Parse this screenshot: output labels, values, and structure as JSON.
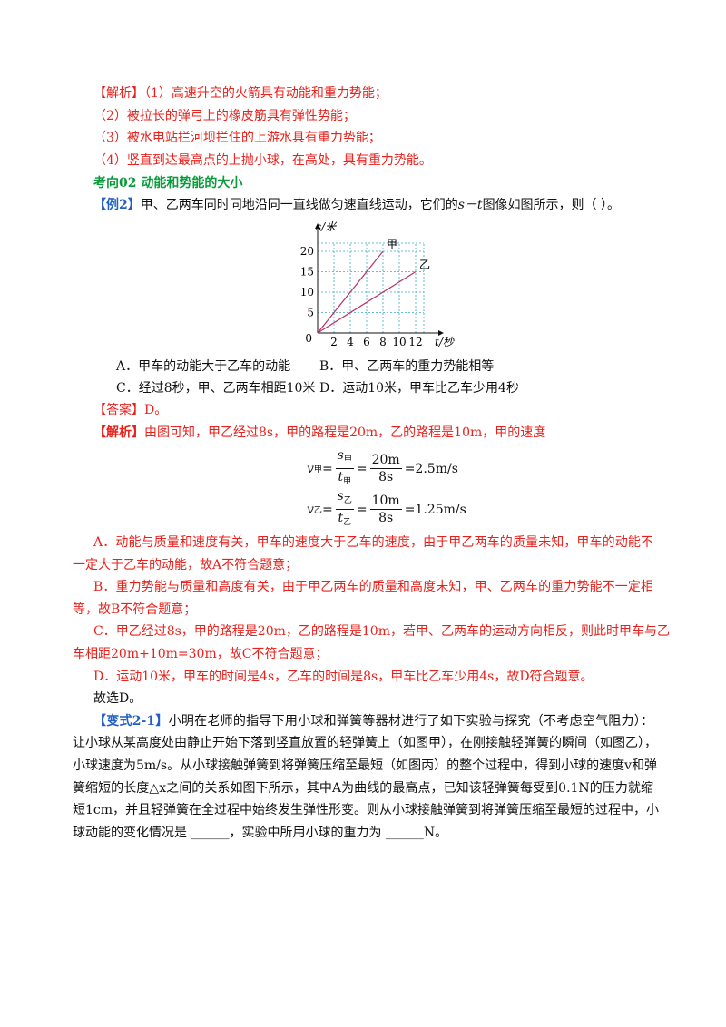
{
  "analysis1": {
    "label": "【解析】",
    "lines": [
      "（1）高速升空的火箭具有动能和重力势能；",
      "（2）被拉长的弹弓上的橡皮筋具有弹性势能；",
      "（3）被水电站拦河坝拦住的上游水具有重力势能；",
      "（4）竖直到达最高点的上抛小球，在高处，具有重力势能。"
    ]
  },
  "section": "考向02   动能和势能的大小",
  "example": {
    "label": "【例2】",
    "text_before": "甲、乙两车同时同地沿同一直线做匀速直线运动，它们的",
    "var": "s－t",
    "text_after": "图像如图所示，则（      ）。"
  },
  "figure": {
    "type": "line",
    "y_label": "s/米",
    "x_label": "t/秒",
    "origin": 0,
    "xlim": [
      0,
      13
    ],
    "ylim": [
      0,
      22
    ],
    "xticks": [
      2,
      4,
      6,
      8,
      10,
      12
    ],
    "yticks": [
      5,
      10,
      15,
      20
    ],
    "grid": true,
    "grid_color": "#3aa7c8",
    "series": [
      {
        "name": "甲",
        "color": "#b8336a",
        "x": [
          0,
          8
        ],
        "values": [
          0,
          20
        ]
      },
      {
        "name": "乙",
        "color": "#b8336a",
        "x": [
          0,
          12
        ],
        "values": [
          0,
          15
        ]
      }
    ]
  },
  "options": [
    "A．甲车的动能大于乙车的动能",
    "B．甲、乙两车的重力势能相等",
    "C．经过8秒，甲、乙两车相距10米",
    "D．运动10米，甲车比乙车少用4秒"
  ],
  "answer": {
    "label": "【答案】",
    "text": "D。"
  },
  "analysis2": {
    "label": "【解析】",
    "text": "由图可知，甲乙经过8s，甲的路程是20m，乙的路程是10m，甲的速度",
    "formulas": [
      {
        "lhs": "v",
        "lhs_sub": "甲",
        "eq": "=",
        "num": "s",
        "num_sub": "甲",
        "den": "t",
        "den_sub": "甲",
        "num2": "20m",
        "den2": "8s",
        "result": "=2.5m/s"
      },
      {
        "lhs": "v",
        "lhs_sub": "乙",
        "eq": "=",
        "num": "s",
        "num_sub": "乙",
        "den": "t",
        "den_sub": "乙",
        "num2": "10m",
        "den2": "8s",
        "result": "=1.25m/s"
      }
    ],
    "paragraphs": [
      [
        "A．动能与质量和速度有关，甲车的速度大于乙车的速度，由于甲乙两车的质量未知，甲车的动能不",
        "一定大于乙车的动能，故A不符合题意；"
      ],
      [
        "B．重力势能与质量和高度有关，由于甲乙两车的质量和高度未知，甲、乙两车的重力势能不一定相",
        "等，故B不符合题意；"
      ],
      [
        "C．甲乙经过8s，甲的路程是20m，乙的路程是10m，若甲、乙两车的运动方向相反，则此时甲车与乙",
        "车相距20m+10m=30m，故C不符合题意；"
      ],
      [
        "D．运动10米，甲车的时间是4s，乙车的时间是8s，甲车比乙车少用4s，故D符合题意。"
      ]
    ],
    "conclusion": "故选D。"
  },
  "variant": {
    "label": "【变式2-1】",
    "lines": [
      "小明在老师的指导下用小球和弹簧等器材进行了如下实验与探究（不考虑空气阻力）：",
      "让小球从某高度处由静止开始下落到竖直放置的轻弹簧上（如图甲），在刚接触轻弹簧的瞬间（如图乙），",
      "小球速度为5m/s。从小球接触弹簧到将弹簧压缩至最短（如图丙）的整个过程中，得到小球的速度v和弹",
      "簧缩短的长度△x之间的关系如图下所示，其中A为曲线的最高点，已知该轻弹簧每受到0.1N的压力就缩",
      "短1cm，并且轻弹簧在全过程中始终发生弹性形变。则从小球接触弹簧到将弹簧压缩至最短的过程中，小",
      "球动能的变化情况是 ______，实验中所用小球的重力为 ______N。"
    ]
  }
}
